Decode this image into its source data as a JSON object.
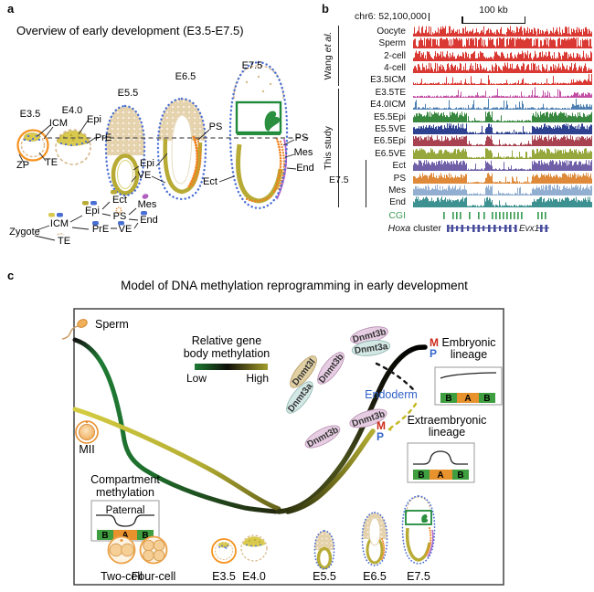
{
  "figure": {
    "panel_a": {
      "label": "a",
      "title": "Overview of early development (E3.5-E7.5)",
      "stages": {
        "e35": "E3.5",
        "e40": "E4.0",
        "e55": "E5.5",
        "e65": "E6.5",
        "e75": "E7.5"
      },
      "labels": {
        "icm": "ICM",
        "epi": "Epi",
        "pre": "PrE",
        "te": "TE",
        "zp": "ZP",
        "epi2": "Epi",
        "ve": "VE",
        "ps": "PS",
        "ps2": "PS",
        "mes": "Mes",
        "end": "End",
        "ect": "Ect"
      },
      "tree": {
        "zygote": "Zygote",
        "icm": "ICM",
        "te": "TE",
        "epi": "Epi",
        "pre": "PrE",
        "ect": "Ect",
        "ps": "PS",
        "ve": "VE",
        "mes": "Mes",
        "end": "End"
      }
    },
    "panel_b": {
      "label": "b",
      "locus": "chr6:  52,100,000",
      "scale_label": "100 kb",
      "group_wang": {
        "regular": "Wang ",
        "italic": "et al."
      },
      "group_study": "This study",
      "group_e75": "E7.5",
      "tracks": [
        {
          "label": "Oocyte",
          "color": "#da3832",
          "profile": "dense"
        },
        {
          "label": "Sperm",
          "color": "#da3832",
          "profile": "block"
        },
        {
          "label": "2-cell",
          "color": "#da3832",
          "profile": "dense"
        },
        {
          "label": "4-cell",
          "color": "#da3832",
          "profile": "dense"
        },
        {
          "label": "E3.5ICM",
          "color": "#da3832",
          "profile": "sparse"
        },
        {
          "label": "E3.5TE",
          "color": "#c24fa4",
          "profile": "sparse"
        },
        {
          "label": "E4.0ICM",
          "color": "#4d7fb2",
          "profile": "sparse"
        },
        {
          "label": "E5.5Epi",
          "color": "#37873f",
          "profile": "blocky"
        },
        {
          "label": "E5.5VE",
          "color": "#2e4190",
          "profile": "blocky"
        },
        {
          "label": "E6.5Epi",
          "color": "#a84250",
          "profile": "blocky"
        },
        {
          "label": "E6.5VE",
          "color": "#96a83c",
          "profile": "blocky"
        },
        {
          "label": "Ect",
          "color": "#6f60a8",
          "profile": "blocky"
        },
        {
          "label": "PS",
          "color": "#de8a3a",
          "profile": "blocky"
        },
        {
          "label": "Mes",
          "color": "#92aed0",
          "profile": "blocky"
        },
        {
          "label": "End",
          "color": "#3e9191",
          "profile": "blocky"
        }
      ],
      "cgi": "CGI",
      "gene_row": {
        "italic": "Hoxa",
        "regular": " cluster",
        "gene2": "Evx1"
      }
    },
    "panel_c": {
      "label": "c",
      "title": "Model of DNA methylation reprogramming in early development",
      "sperm": "Sperm",
      "mii": "MII",
      "legend": {
        "line1": "Relative gene",
        "line2": "body methylation",
        "low": "Low",
        "high": "High"
      },
      "enzymes": {
        "dnmt3b": "Dnmt3b",
        "dnmt3a": "Dnmt3a",
        "dnmt3l": "Dnmt3l"
      },
      "alleles": {
        "m": "M",
        "p": "P"
      },
      "endoderm": "Endoderm",
      "embryonic": {
        "line1": "Embryonic",
        "line2": "lineage"
      },
      "extraembryonic": {
        "line1": "Extraembryonic",
        "line2": "lineage"
      },
      "compartment": {
        "line1": "Compartment",
        "line2": "methylation",
        "paternal": "Paternal",
        "b": "B",
        "a": "A"
      },
      "stage_labels": {
        "two_cell": "Two-cell",
        "four_cell": "Four-cell",
        "e35": "E3.5",
        "e40": "E4.0",
        "e55": "E5.5",
        "e65": "E6.5",
        "e75": "E7.5"
      }
    },
    "colors": {
      "methylation_low_green": "#1e7a33",
      "methylation_high_olive": "#a8a22a",
      "maternal_M_red": "#cc2a1a",
      "paternal_P_blue": "#3366cc",
      "cgi_green": "#3f9e57",
      "compartment_B_green": "#3f9e3f",
      "compartment_A_orange": "#e8922e"
    }
  }
}
